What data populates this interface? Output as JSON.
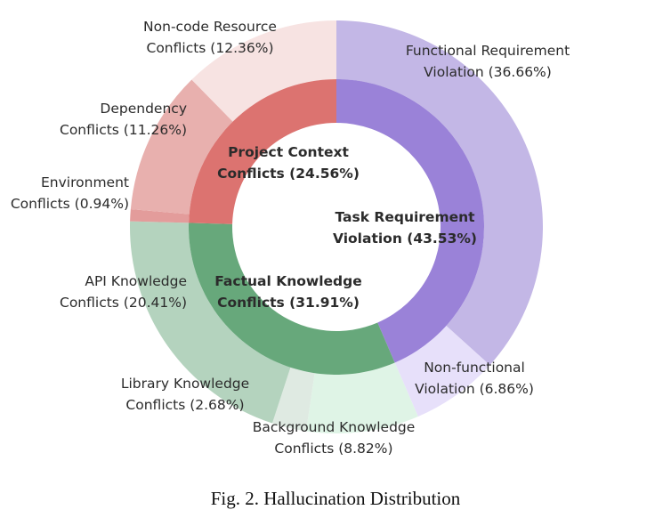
{
  "caption": "Fig. 2.   Hallucination Distribution",
  "chart_data": {
    "type": "pie",
    "subtype": "nested-donut",
    "start_angle_deg": 0,
    "direction": "clockwise",
    "inner_ring": [
      {
        "name": "Task Requirement Violation",
        "value": 43.53,
        "label": [
          "Task Requirement",
          "Violation (43.53%)"
        ],
        "color": "#9a82d8"
      },
      {
        "name": "Factual Knowledge Conflicts",
        "value": 31.91,
        "label": [
          "Factual Knowledge",
          "Conflicts (31.91%)"
        ],
        "color": "#67a87b"
      },
      {
        "name": "Project Context Conflicts",
        "value": 24.56,
        "label": [
          "Project Context",
          "Conflicts (24.56%)"
        ],
        "color": "#dc7370"
      }
    ],
    "outer_ring": [
      {
        "name": "Functional Requirement Violation",
        "value": 36.66,
        "label": [
          "Functional Requirement",
          "Violation (36.66%)"
        ],
        "color": "#c3b7e6"
      },
      {
        "name": "Non-functional Violation",
        "value": 6.86,
        "label": [
          "Non-functional",
          "Violation (6.86%)"
        ],
        "color": "#e7e0fa"
      },
      {
        "name": "Background Knowledge Conflicts",
        "value": 8.82,
        "label": [
          "Background Knowledge",
          "Conflicts (8.82%)"
        ],
        "color": "#dff4e6"
      },
      {
        "name": "Library Knowledge Conflicts",
        "value": 2.68,
        "label": [
          "Library Knowledge",
          "Conflicts (2.68%)"
        ],
        "color": "#dfeae2"
      },
      {
        "name": "API Knowledge Conflicts",
        "value": 20.41,
        "label": [
          "API Knowledge",
          "Conflicts (20.41%)"
        ],
        "color": "#b4d3be"
      },
      {
        "name": "Environment Conflicts",
        "value": 0.94,
        "label": [
          "Environment",
          "Conflicts (0.94%)"
        ],
        "color": "#e39c9b"
      },
      {
        "name": "Dependency Conflicts",
        "value": 11.26,
        "label": [
          "Dependency",
          "Conflicts (11.26%)"
        ],
        "color": "#e8b0ae"
      },
      {
        "name": "Non-code Resource Conflicts",
        "value": 12.36,
        "label": [
          "Non-code Resource",
          "Conflicts (12.36%)"
        ],
        "color": "#f7e3e2"
      }
    ]
  }
}
